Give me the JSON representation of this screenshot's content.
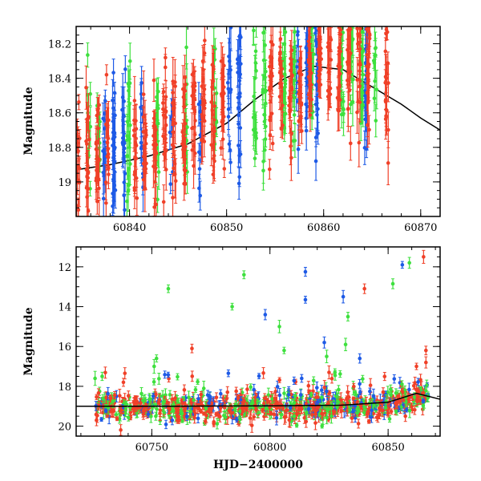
{
  "chart_data": [
    {
      "type": "scatter",
      "title": "",
      "xlabel": "",
      "ylabel": "Magnitude",
      "xlim": [
        60834.5,
        60872
      ],
      "ylim": [
        19.2,
        18.1
      ],
      "y_inverted": true,
      "xticks": [
        60840,
        60850,
        60860,
        60870
      ],
      "xtick_labels": [
        "60840",
        "60850",
        "60860",
        "60870"
      ],
      "yticks": [
        18.2,
        18.4,
        18.6,
        18.8,
        19.0
      ],
      "ytick_labels": [
        "18.2",
        "18.4",
        "18.6",
        "18.8",
        "19"
      ],
      "grid": false,
      "legend": "none",
      "model_curve": {
        "color": "#000000",
        "x": [
          60834.5,
          60838,
          60842,
          60846,
          60850,
          60853,
          60856,
          60859,
          60862,
          60865,
          60868,
          60870,
          60872
        ],
        "y": [
          18.93,
          18.9,
          18.85,
          18.78,
          18.66,
          18.52,
          18.4,
          18.33,
          18.35,
          18.45,
          18.55,
          18.63,
          18.7
        ]
      },
      "series": [
        {
          "color": "#1e5ae6",
          "clusters": [
            {
              "x": 60837.4,
              "y": 18.85,
              "n": 14
            },
            {
              "x": 60838.4,
              "y": 18.85,
              "n": 30
            },
            {
              "x": 60839.4,
              "y": 18.8,
              "n": 18
            },
            {
              "x": 60841.3,
              "y": 18.78,
              "n": 12
            },
            {
              "x": 60844.3,
              "y": 18.7,
              "n": 10
            },
            {
              "x": 60847.3,
              "y": 18.65,
              "n": 10
            },
            {
              "x": 60850.3,
              "y": 18.55,
              "n": 14
            },
            {
              "x": 60851.3,
              "y": 18.5,
              "n": 22
            },
            {
              "x": 60857.3,
              "y": 18.38,
              "n": 10
            },
            {
              "x": 60858.3,
              "y": 18.4,
              "n": 18
            },
            {
              "x": 60859.3,
              "y": 18.35,
              "n": 20
            },
            {
              "x": 60864.4,
              "y": 18.4,
              "n": 22
            }
          ]
        },
        {
          "color": "#3ee03e",
          "clusters": [
            {
              "x": 60835.8,
              "y": 18.75,
              "n": 10
            },
            {
              "x": 60836.8,
              "y": 18.75,
              "n": 10
            },
            {
              "x": 60839.9,
              "y": 18.72,
              "n": 18
            },
            {
              "x": 60842.9,
              "y": 18.7,
              "n": 14
            },
            {
              "x": 60845.8,
              "y": 18.65,
              "n": 14
            },
            {
              "x": 60848.8,
              "y": 18.6,
              "n": 14
            },
            {
              "x": 60852.9,
              "y": 18.45,
              "n": 18
            },
            {
              "x": 60853.9,
              "y": 18.4,
              "n": 20
            },
            {
              "x": 60855.9,
              "y": 18.45,
              "n": 20
            },
            {
              "x": 60856.9,
              "y": 18.4,
              "n": 18
            },
            {
              "x": 60858.8,
              "y": 18.3,
              "n": 14
            },
            {
              "x": 60861.9,
              "y": 18.3,
              "n": 18
            },
            {
              "x": 60862.9,
              "y": 18.28,
              "n": 14
            },
            {
              "x": 60863.9,
              "y": 18.25,
              "n": 22
            },
            {
              "x": 60865.3,
              "y": 18.35,
              "n": 10
            }
          ]
        },
        {
          "color": "#f04028",
          "clusters": [
            {
              "x": 60834.7,
              "y": 18.9,
              "n": 14
            },
            {
              "x": 60835.7,
              "y": 18.88,
              "n": 18
            },
            {
              "x": 60836.7,
              "y": 18.85,
              "n": 20
            },
            {
              "x": 60837.7,
              "y": 18.8,
              "n": 16
            },
            {
              "x": 60840.6,
              "y": 18.8,
              "n": 20
            },
            {
              "x": 60841.6,
              "y": 18.78,
              "n": 20
            },
            {
              "x": 60842.6,
              "y": 18.75,
              "n": 20
            },
            {
              "x": 60843.6,
              "y": 18.7,
              "n": 20
            },
            {
              "x": 60844.6,
              "y": 18.7,
              "n": 20
            },
            {
              "x": 60845.6,
              "y": 18.7,
              "n": 20
            },
            {
              "x": 60846.6,
              "y": 18.65,
              "n": 20
            },
            {
              "x": 60847.6,
              "y": 18.6,
              "n": 20
            },
            {
              "x": 60848.6,
              "y": 18.6,
              "n": 20
            },
            {
              "x": 60849.6,
              "y": 18.55,
              "n": 20
            },
            {
              "x": 60854.6,
              "y": 18.5,
              "n": 20
            },
            {
              "x": 60855.6,
              "y": 18.45,
              "n": 20
            },
            {
              "x": 60856.6,
              "y": 18.45,
              "n": 20
            },
            {
              "x": 60857.6,
              "y": 18.4,
              "n": 20
            },
            {
              "x": 60858.6,
              "y": 18.35,
              "n": 20
            },
            {
              "x": 60859.6,
              "y": 18.32,
              "n": 20
            },
            {
              "x": 60860.6,
              "y": 18.3,
              "n": 20
            },
            {
              "x": 60861.6,
              "y": 18.3,
              "n": 20
            },
            {
              "x": 60862.6,
              "y": 18.3,
              "n": 20
            },
            {
              "x": 60863.6,
              "y": 18.32,
              "n": 20
            },
            {
              "x": 60864.6,
              "y": 18.35,
              "n": 20
            },
            {
              "x": 60866.5,
              "y": 18.45,
              "n": 22
            }
          ]
        }
      ]
    },
    {
      "type": "scatter",
      "title": "",
      "xlabel": "HJD−2400000",
      "ylabel": "Magnitude",
      "xlim": [
        60718,
        60872
      ],
      "ylim": [
        20.5,
        11.0
      ],
      "y_inverted": true,
      "xticks": [
        60750,
        60800,
        60850
      ],
      "xtick_labels": [
        "60750",
        "60800",
        "60850"
      ],
      "yticks": [
        12,
        14,
        16,
        18,
        20
      ],
      "ytick_labels": [
        "12",
        "14",
        "16",
        "18",
        "20"
      ],
      "grid": false,
      "legend": "none",
      "model_curve": {
        "color": "#000000",
        "x": [
          60718,
          60760,
          60800,
          60830,
          60850,
          60862,
          60872
        ],
        "y": [
          19.0,
          19.0,
          18.98,
          18.95,
          18.8,
          18.35,
          18.65
        ]
      },
      "baseline": {
        "x_start": 60726,
        "x_end": 60867,
        "band_width": 0.35
      },
      "series": [
        {
          "color": "#1e5ae6",
          "outliers": [
            {
              "x": 60798,
              "y": 14.4
            },
            {
              "x": 60815,
              "y": 12.25
            },
            {
              "x": 60815,
              "y": 13.65
            },
            {
              "x": 60831,
              "y": 13.5
            },
            {
              "x": 60856,
              "y": 11.9
            },
            {
              "x": 60823,
              "y": 15.8
            },
            {
              "x": 60838,
              "y": 16.6
            }
          ]
        },
        {
          "color": "#3ee03e",
          "outliers": [
            {
              "x": 60757,
              "y": 13.1
            },
            {
              "x": 60789,
              "y": 12.4
            },
            {
              "x": 60784,
              "y": 14.0
            },
            {
              "x": 60804,
              "y": 15.0
            },
            {
              "x": 60806,
              "y": 16.2
            },
            {
              "x": 60833,
              "y": 14.5
            },
            {
              "x": 60832,
              "y": 15.9
            },
            {
              "x": 60859,
              "y": 11.8
            },
            {
              "x": 60852,
              "y": 12.85
            },
            {
              "x": 60752,
              "y": 16.6
            },
            {
              "x": 60751,
              "y": 17.0
            },
            {
              "x": 60824,
              "y": 16.5
            },
            {
              "x": 60726,
              "y": 17.6
            },
            {
              "x": 60729,
              "y": 17.5
            }
          ]
        },
        {
          "color": "#f04028",
          "outliers": [
            {
              "x": 60767,
              "y": 16.1
            },
            {
              "x": 60840,
              "y": 13.1
            },
            {
              "x": 60865,
              "y": 11.5
            },
            {
              "x": 60866,
              "y": 16.2
            },
            {
              "x": 60862,
              "y": 17.0
            },
            {
              "x": 60866,
              "y": 16.8
            },
            {
              "x": 60738,
              "y": 17.8
            },
            {
              "x": 60825,
              "y": 17.3
            }
          ]
        }
      ]
    }
  ]
}
